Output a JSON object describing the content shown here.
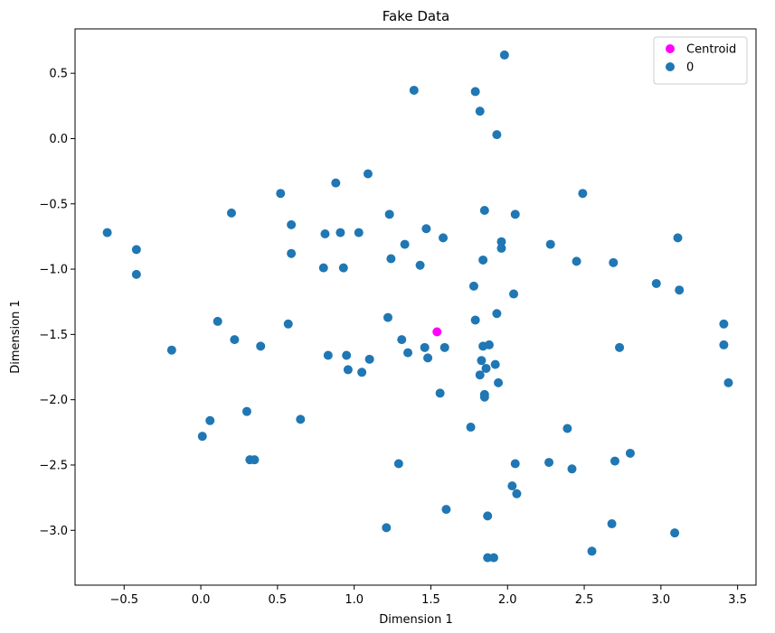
{
  "chart_data": {
    "type": "scatter",
    "title": "Fake Data",
    "xlabel": "Dimension 1",
    "ylabel": "Dimension 1",
    "xlim": [
      -0.82,
      3.62
    ],
    "ylim": [
      -3.42,
      0.84
    ],
    "xticks": [
      -0.5,
      0.0,
      0.5,
      1.0,
      1.5,
      2.0,
      2.5,
      3.0,
      3.5
    ],
    "xtick_labels": [
      "−0.5",
      "0.0",
      "0.5",
      "1.0",
      "1.5",
      "2.0",
      "2.5",
      "3.0",
      "3.5"
    ],
    "yticks": [
      0.5,
      0.0,
      -0.5,
      -1.0,
      -1.5,
      -2.0,
      -2.5,
      -3.0
    ],
    "ytick_labels": [
      "0.5",
      "0.0",
      "−0.5",
      "−1.0",
      "−1.5",
      "−2.0",
      "−2.5",
      "−3.0"
    ],
    "grid": false,
    "legend_position": "top-right",
    "series": [
      {
        "name": "Centroid",
        "color": "#ff00ff",
        "points": [
          [
            1.54,
            -1.48
          ]
        ]
      },
      {
        "name": "0",
        "color": "#1f77b4",
        "points": [
          [
            -0.61,
            -0.72
          ],
          [
            -0.42,
            -0.85
          ],
          [
            -0.42,
            -1.04
          ],
          [
            -0.19,
            -1.62
          ],
          [
            0.01,
            -2.28
          ],
          [
            0.06,
            -2.16
          ],
          [
            0.11,
            -1.4
          ],
          [
            0.2,
            -0.57
          ],
          [
            0.22,
            -1.54
          ],
          [
            0.3,
            -2.09
          ],
          [
            0.32,
            -2.46
          ],
          [
            0.35,
            -2.46
          ],
          [
            0.39,
            -1.59
          ],
          [
            0.52,
            -0.42
          ],
          [
            0.57,
            -1.42
          ],
          [
            0.59,
            -0.66
          ],
          [
            0.59,
            -0.88
          ],
          [
            0.65,
            -2.15
          ],
          [
            0.8,
            -0.99
          ],
          [
            0.81,
            -0.73
          ],
          [
            0.83,
            -1.66
          ],
          [
            0.88,
            -0.34
          ],
          [
            0.91,
            -0.72
          ],
          [
            0.93,
            -0.99
          ],
          [
            0.95,
            -1.66
          ],
          [
            0.96,
            -1.77
          ],
          [
            1.03,
            -0.72
          ],
          [
            1.05,
            -1.79
          ],
          [
            1.09,
            -0.27
          ],
          [
            1.1,
            -1.69
          ],
          [
            1.22,
            -1.37
          ],
          [
            1.23,
            -0.58
          ],
          [
            1.24,
            -0.92
          ],
          [
            1.21,
            -2.98
          ],
          [
            1.29,
            -2.49
          ],
          [
            1.31,
            -1.54
          ],
          [
            1.33,
            -0.81
          ],
          [
            1.35,
            -1.64
          ],
          [
            1.39,
            0.37
          ],
          [
            1.43,
            -0.97
          ],
          [
            1.46,
            -1.6
          ],
          [
            1.47,
            -0.69
          ],
          [
            1.48,
            -1.68
          ],
          [
            1.56,
            -1.95
          ],
          [
            1.58,
            -0.76
          ],
          [
            1.59,
            -1.6
          ],
          [
            1.6,
            -2.84
          ],
          [
            1.76,
            -2.21
          ],
          [
            1.78,
            -1.13
          ],
          [
            1.79,
            -1.39
          ],
          [
            1.79,
            0.36
          ],
          [
            1.82,
            0.21
          ],
          [
            1.82,
            -1.81
          ],
          [
            1.83,
            -1.7
          ],
          [
            1.84,
            -0.93
          ],
          [
            1.84,
            -1.59
          ],
          [
            1.85,
            -0.55
          ],
          [
            1.85,
            -1.96
          ],
          [
            1.85,
            -1.98
          ],
          [
            1.86,
            -1.76
          ],
          [
            1.87,
            -2.89
          ],
          [
            1.87,
            -3.21
          ],
          [
            1.88,
            -1.58
          ],
          [
            1.91,
            -3.21
          ],
          [
            1.92,
            -1.73
          ],
          [
            1.93,
            -1.34
          ],
          [
            1.93,
            0.03
          ],
          [
            1.94,
            -1.87
          ],
          [
            1.96,
            -0.84
          ],
          [
            1.96,
            -0.79
          ],
          [
            1.98,
            0.64
          ],
          [
            2.03,
            -2.66
          ],
          [
            2.04,
            -1.19
          ],
          [
            2.05,
            -0.58
          ],
          [
            2.05,
            -2.49
          ],
          [
            2.06,
            -2.72
          ],
          [
            2.27,
            -2.48
          ],
          [
            2.28,
            -0.81
          ],
          [
            2.39,
            -2.22
          ],
          [
            2.42,
            -2.53
          ],
          [
            2.45,
            -0.94
          ],
          [
            2.49,
            -0.42
          ],
          [
            2.55,
            -3.16
          ],
          [
            2.68,
            -2.95
          ],
          [
            2.69,
            -0.95
          ],
          [
            2.7,
            -2.47
          ],
          [
            2.73,
            -1.6
          ],
          [
            2.8,
            -2.41
          ],
          [
            2.97,
            -1.11
          ],
          [
            3.09,
            -3.02
          ],
          [
            3.11,
            -0.76
          ],
          [
            3.12,
            -1.16
          ],
          [
            3.41,
            -1.42
          ],
          [
            3.41,
            -1.58
          ],
          [
            3.44,
            -1.87
          ]
        ]
      }
    ]
  }
}
